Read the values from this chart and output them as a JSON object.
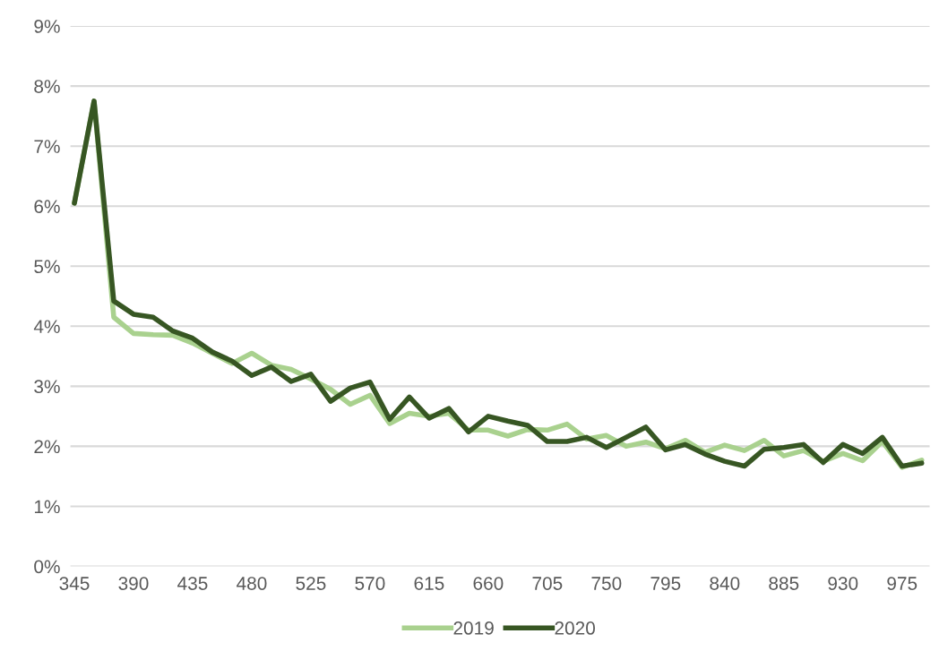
{
  "chart_data": {
    "type": "line",
    "categories": [
      "345",
      null,
      null,
      "390",
      null,
      null,
      "435",
      null,
      null,
      "480",
      null,
      null,
      "525",
      null,
      null,
      "570",
      null,
      null,
      "615",
      null,
      null,
      "660",
      null,
      null,
      "705",
      null,
      null,
      "750",
      null,
      null,
      "795",
      null,
      null,
      "840",
      null,
      null,
      "885",
      null,
      null,
      "930",
      null,
      null,
      "975",
      null
    ],
    "series": [
      {
        "name": "2019",
        "color": "#a9d18e",
        "values": [
          6.05,
          7.75,
          4.15,
          3.88,
          3.86,
          3.85,
          3.72,
          3.55,
          3.38,
          3.55,
          3.35,
          3.28,
          3.12,
          2.95,
          2.7,
          2.85,
          2.38,
          2.55,
          2.5,
          2.55,
          2.27,
          2.27,
          2.17,
          2.28,
          2.27,
          2.37,
          2.12,
          2.18,
          2.0,
          2.07,
          1.96,
          2.1,
          1.9,
          2.02,
          1.93,
          2.1,
          1.84,
          1.93,
          1.75,
          1.88,
          1.76,
          2.08,
          1.65,
          1.77
        ]
      },
      {
        "name": "2020",
        "color": "#375623",
        "values": [
          6.05,
          7.75,
          4.42,
          4.2,
          4.15,
          3.92,
          3.8,
          3.57,
          3.42,
          3.18,
          3.32,
          3.08,
          3.2,
          2.75,
          2.97,
          3.07,
          2.45,
          2.82,
          2.47,
          2.63,
          2.24,
          2.5,
          2.42,
          2.35,
          2.08,
          2.08,
          2.15,
          1.98,
          2.15,
          2.32,
          1.94,
          2.03,
          1.87,
          1.75,
          1.67,
          1.95,
          1.98,
          2.03,
          1.73,
          2.03,
          1.88,
          2.15,
          1.67,
          1.72
        ]
      }
    ],
    "ylim": [
      0,
      9
    ],
    "yticks": [
      {
        "value": 0,
        "label": "0%"
      },
      {
        "value": 1,
        "label": "1%"
      },
      {
        "value": 2,
        "label": "2%"
      },
      {
        "value": 3,
        "label": "3%"
      },
      {
        "value": 4,
        "label": "4%"
      },
      {
        "value": 5,
        "label": "5%"
      },
      {
        "value": 6,
        "label": "6%"
      },
      {
        "value": 7,
        "label": "7%"
      },
      {
        "value": 8,
        "label": "8%"
      },
      {
        "value": 9,
        "label": "9%"
      }
    ],
    "grid": "y",
    "legend": "bottom",
    "marker": "none",
    "line_style": "solid"
  }
}
